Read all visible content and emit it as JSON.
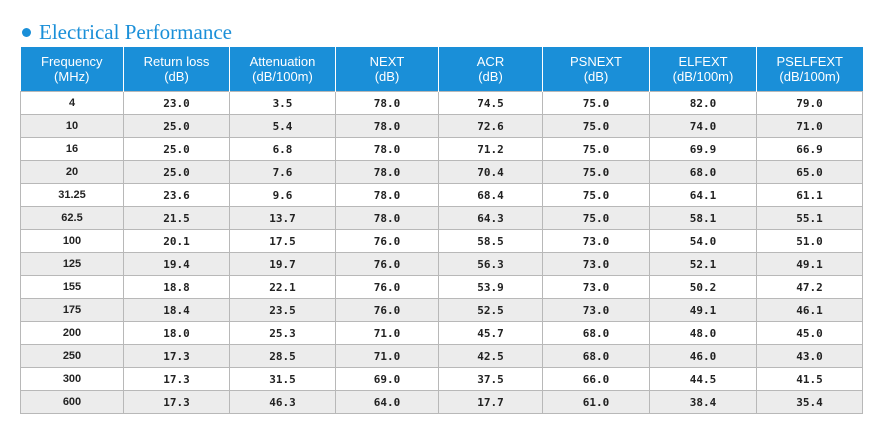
{
  "section": {
    "title": "Electrical Performance",
    "accent_color": "#1a8fd8"
  },
  "table": {
    "columns": [
      "Frequency\n(MHz)",
      "Return loss\n(dB)",
      "Attenuation\n(dB/100m)",
      "NEXT\n(dB)",
      "ACR\n(dB)",
      "PSNEXT\n(dB)",
      "ELFEXT\n(dB/100m)",
      "PSELFEXT\n(dB/100m)"
    ],
    "rows": [
      [
        "4",
        "23.0",
        "3.5",
        "78.0",
        "74.5",
        "75.0",
        "82.0",
        "79.0"
      ],
      [
        "10",
        "25.0",
        "5.4",
        "78.0",
        "72.6",
        "75.0",
        "74.0",
        "71.0"
      ],
      [
        "16",
        "25.0",
        "6.8",
        "78.0",
        "71.2",
        "75.0",
        "69.9",
        "66.9"
      ],
      [
        "20",
        "25.0",
        "7.6",
        "78.0",
        "70.4",
        "75.0",
        "68.0",
        "65.0"
      ],
      [
        "31.25",
        "23.6",
        "9.6",
        "78.0",
        "68.4",
        "75.0",
        "64.1",
        "61.1"
      ],
      [
        "62.5",
        "21.5",
        "13.7",
        "78.0",
        "64.3",
        "75.0",
        "58.1",
        "55.1"
      ],
      [
        "100",
        "20.1",
        "17.5",
        "76.0",
        "58.5",
        "73.0",
        "54.0",
        "51.0"
      ],
      [
        "125",
        "19.4",
        "19.7",
        "76.0",
        "56.3",
        "73.0",
        "52.1",
        "49.1"
      ],
      [
        "155",
        "18.8",
        "22.1",
        "76.0",
        "53.9",
        "73.0",
        "50.2",
        "47.2"
      ],
      [
        "175",
        "18.4",
        "23.5",
        "76.0",
        "52.5",
        "73.0",
        "49.1",
        "46.1"
      ],
      [
        "200",
        "18.0",
        "25.3",
        "71.0",
        "45.7",
        "68.0",
        "48.0",
        "45.0"
      ],
      [
        "250",
        "17.3",
        "28.5",
        "71.0",
        "42.5",
        "68.0",
        "46.0",
        "43.0"
      ],
      [
        "300",
        "17.3",
        "31.5",
        "69.0",
        "37.5",
        "66.0",
        "44.5",
        "41.5"
      ],
      [
        "600",
        "17.3",
        "46.3",
        "64.0",
        "17.7",
        "61.0",
        "38.4",
        "35.4"
      ]
    ]
  }
}
